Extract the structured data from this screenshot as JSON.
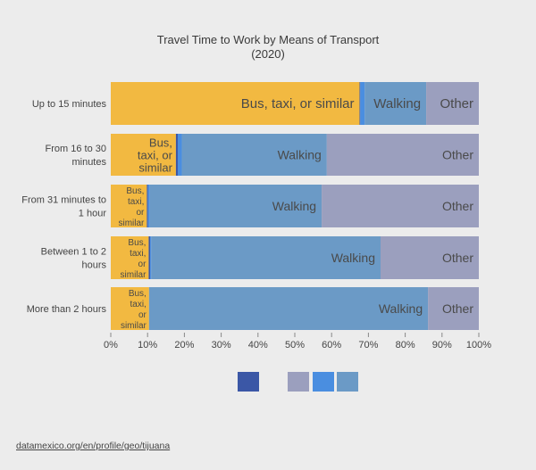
{
  "page": {
    "background": "#ececec",
    "title_line1": "Travel Time to Work by Means of Transport",
    "title_line2": "(2020)",
    "source_link": "datamexico.org/en/profile/geo/tijuana"
  },
  "colors": {
    "bus": "#f2b941",
    "dark_blue": "#3b57a6",
    "blue": "#4a8ee0",
    "walking": "#6b9ac6",
    "other": "#9b9fbe",
    "tiny_dark": "#555555"
  },
  "chart_data": {
    "type": "bar",
    "orientation": "horizontal",
    "stacked": true,
    "normalized": true,
    "categories": [
      "Up to 15 minutes",
      "From 16 to 30 minutes",
      "From 31 minutes to 1 hour",
      "Between 1 to 2 hours",
      "More than 2 hours"
    ],
    "category_label_lines": [
      [
        "Up to 15 minutes"
      ],
      [
        "From 16 to 30",
        "minutes"
      ],
      [
        "From 31 minutes to",
        "1 hour"
      ],
      [
        "Between 1 to 2",
        "hours"
      ],
      [
        "More than 2 hours"
      ]
    ],
    "series": [
      {
        "values": [
          67.6,
          17.7,
          9.8,
          10.3,
          10.4
        ],
        "color": "#f2b941",
        "label_text": "Bus, taxi, or similar"
      },
      {
        "values": [
          0.2,
          0.5,
          0.3,
          0.4,
          0.0
        ],
        "color": "#3b57a6"
      },
      {
        "values": [
          1.2,
          1.1,
          0.5,
          0.3,
          0.0
        ],
        "color": "#4a8ee0"
      },
      {
        "values": [
          16.7,
          39.4,
          46.7,
          62.3,
          75.8
        ],
        "color": "#6b9ac6",
        "label_text": "Walking"
      },
      {
        "values": [
          14.3,
          41.3,
          42.7,
          26.7,
          13.8
        ],
        "color": "#9b9fbe",
        "label_text": "Other"
      }
    ],
    "xlim": [
      0,
      100
    ],
    "x_ticks": [
      0,
      10,
      20,
      30,
      40,
      50,
      60,
      70,
      80,
      90,
      100
    ],
    "x_tick_labels": [
      "0%",
      "10%",
      "20%",
      "30%",
      "40%",
      "50%",
      "60%",
      "70%",
      "80%",
      "90%",
      "100%"
    ],
    "legend": {
      "placement": "bottom",
      "swatches": [
        "#3b57a6",
        "#9b9fbe",
        "#4a8ee0",
        "#6b9ac6"
      ],
      "labels": [
        "",
        "",
        "",
        ""
      ]
    },
    "grid": false
  }
}
